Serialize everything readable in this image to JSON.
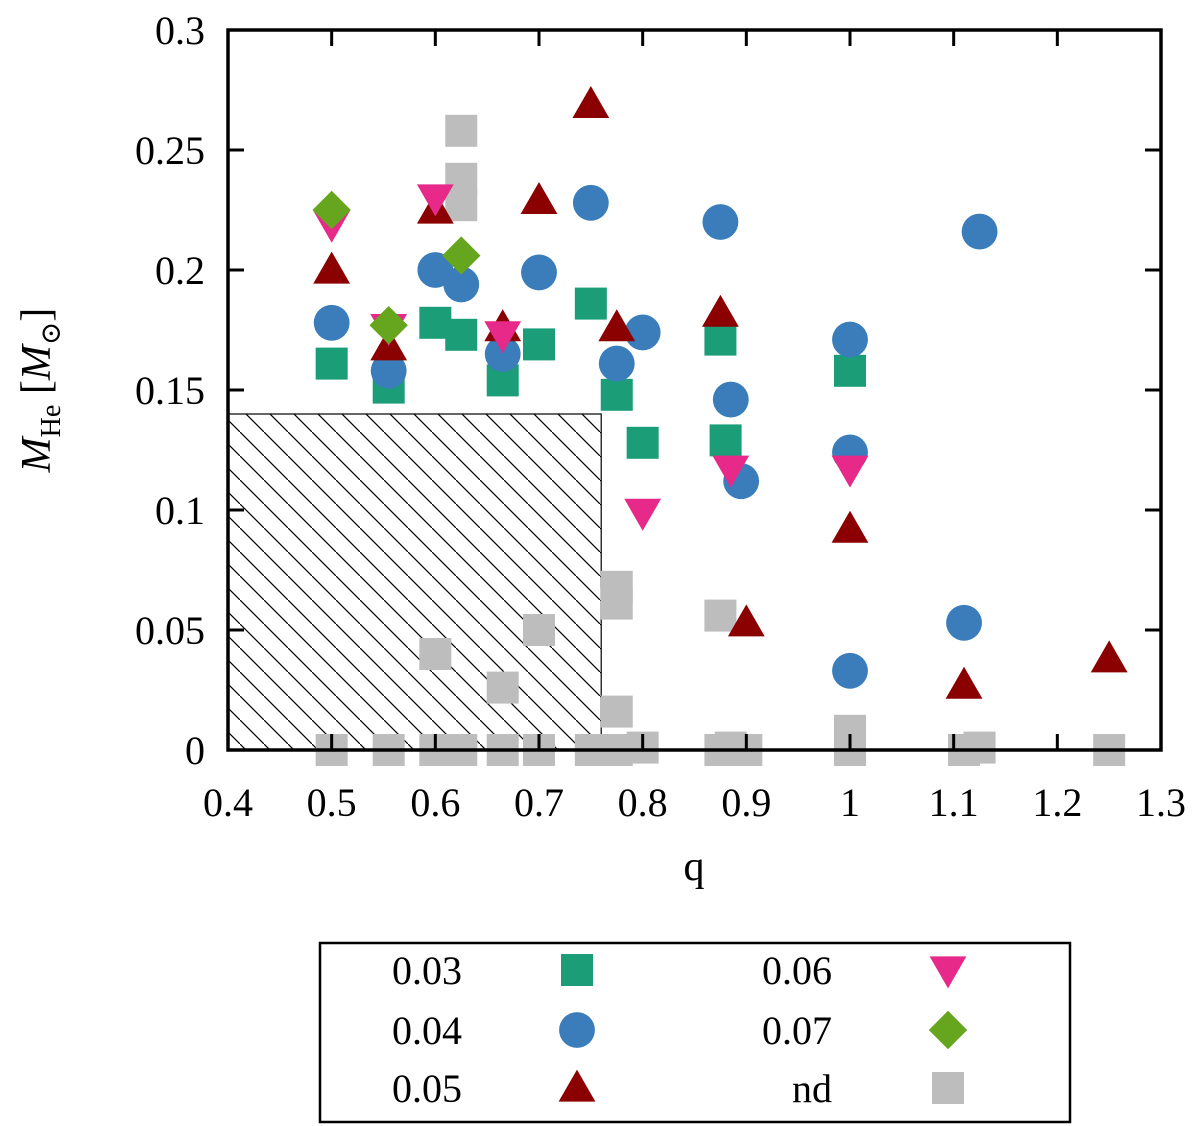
{
  "chart_data": {
    "type": "scatter",
    "title": "",
    "xlabel": "q",
    "ylabel": {
      "main": "M",
      "sub": "He",
      "unit_open": " [",
      "unit": "M",
      "unit_sub": "⊙",
      "unit_close": "]"
    },
    "xlim": [
      0.4,
      1.3
    ],
    "ylim": [
      0,
      0.3
    ],
    "x_ticks": [
      "0.4",
      "0.5",
      "0.6",
      "0.7",
      "0.8",
      "0.9",
      "1",
      "1.1",
      "1.2",
      "1.3"
    ],
    "y_ticks": [
      "0",
      "0.05",
      "0.1",
      "0.15",
      "0.2",
      "0.25",
      "0.3"
    ],
    "grid": false,
    "legend_placement": "bottom (below chart)",
    "excluded_region": {
      "x": [
        0.4,
        0.76
      ],
      "y": [
        0,
        0.14
      ],
      "style": "hatched"
    },
    "series": [
      {
        "name": "0.03",
        "marker": "square",
        "color": "#1b9e77",
        "points": [
          [
            0.5,
            0.161
          ],
          [
            0.555,
            0.151
          ],
          [
            0.6,
            0.178
          ],
          [
            0.625,
            0.173
          ],
          [
            0.665,
            0.154
          ],
          [
            0.7,
            0.169
          ],
          [
            0.75,
            0.186
          ],
          [
            0.775,
            0.148
          ],
          [
            0.8,
            0.128
          ],
          [
            0.875,
            0.171
          ],
          [
            0.88,
            0.129
          ],
          [
            1.0,
            0.158
          ]
        ]
      },
      {
        "name": "0.04",
        "marker": "circle",
        "color": "#3a7dba",
        "points": [
          [
            0.5,
            0.178
          ],
          [
            0.555,
            0.158
          ],
          [
            0.6,
            0.2
          ],
          [
            0.625,
            0.194
          ],
          [
            0.665,
            0.165
          ],
          [
            0.7,
            0.199
          ],
          [
            0.75,
            0.228
          ],
          [
            0.775,
            0.161
          ],
          [
            0.8,
            0.174
          ],
          [
            0.875,
            0.22
          ],
          [
            0.885,
            0.146
          ],
          [
            0.895,
            0.112
          ],
          [
            1.0,
            0.171
          ],
          [
            1.0,
            0.124
          ],
          [
            1.0,
            0.033
          ],
          [
            1.11,
            0.053
          ],
          [
            1.125,
            0.216
          ]
        ]
      },
      {
        "name": "0.05",
        "marker": "triangle-up",
        "color": "#8b0000",
        "points": [
          [
            0.5,
            0.2
          ],
          [
            0.555,
            0.168
          ],
          [
            0.6,
            0.225
          ],
          [
            0.665,
            0.176
          ],
          [
            0.7,
            0.229
          ],
          [
            0.75,
            0.269
          ],
          [
            0.775,
            0.176
          ],
          [
            0.875,
            0.182
          ],
          [
            0.9,
            0.053
          ],
          [
            1.0,
            0.092
          ],
          [
            1.11,
            0.027
          ],
          [
            1.25,
            0.038
          ]
        ]
      },
      {
        "name": "0.06",
        "marker": "triangle-down",
        "color": "#e7298a",
        "points": [
          [
            0.5,
            0.219
          ],
          [
            0.555,
            0.176
          ],
          [
            0.6,
            0.23
          ],
          [
            0.665,
            0.173
          ],
          [
            0.8,
            0.099
          ],
          [
            0.885,
            0.117
          ],
          [
            1.0,
            0.117
          ]
        ]
      },
      {
        "name": "0.07",
        "marker": "diamond",
        "color": "#66a61e",
        "points": [
          [
            0.5,
            0.225
          ],
          [
            0.555,
            0.177
          ],
          [
            0.625,
            0.206
          ]
        ]
      },
      {
        "name": "nd",
        "marker": "square",
        "color": "#bdbdbd",
        "points": [
          [
            0.5,
            0.0
          ],
          [
            0.555,
            0.0
          ],
          [
            0.6,
            0.0
          ],
          [
            0.6,
            0.04
          ],
          [
            0.625,
            0.0
          ],
          [
            0.625,
            0.258
          ],
          [
            0.625,
            0.238
          ],
          [
            0.625,
            0.227
          ],
          [
            0.665,
            0.0
          ],
          [
            0.665,
            0.026
          ],
          [
            0.7,
            0.0
          ],
          [
            0.7,
            0.05
          ],
          [
            0.75,
            0.0
          ],
          [
            0.775,
            0.0
          ],
          [
            0.775,
            0.068
          ],
          [
            0.775,
            0.061
          ],
          [
            0.775,
            0.016
          ],
          [
            0.8,
            0.001
          ],
          [
            0.875,
            0.0
          ],
          [
            0.875,
            0.056
          ],
          [
            0.885,
            0.001
          ],
          [
            0.9,
            0.0
          ],
          [
            1.0,
            0.0
          ],
          [
            1.0,
            0.008
          ],
          [
            1.11,
            0.0
          ],
          [
            1.125,
            0.001
          ],
          [
            1.25,
            0.0
          ]
        ]
      }
    ]
  }
}
